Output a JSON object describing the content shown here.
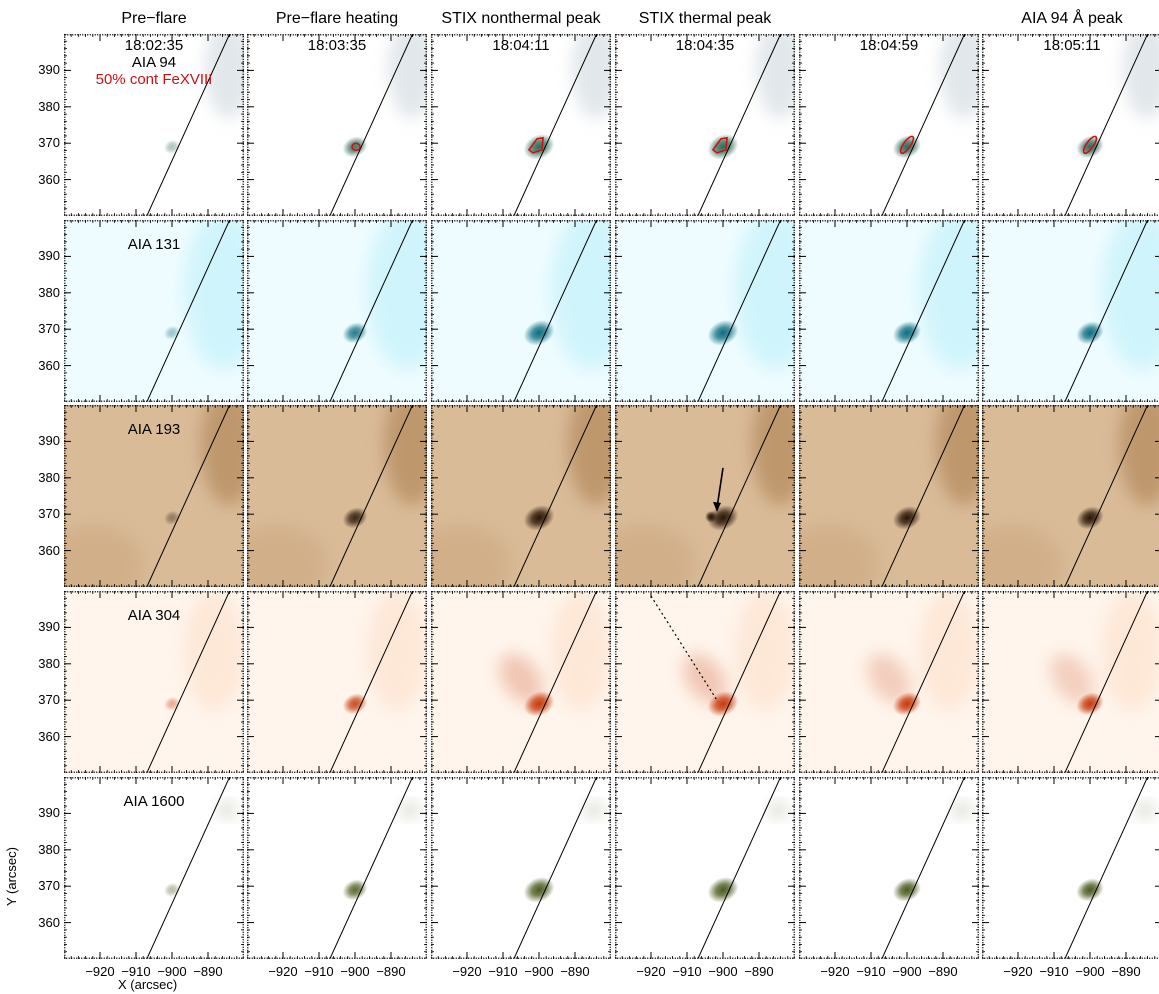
{
  "columns": [
    {
      "header": "Pre−flare",
      "time": "18:02:35"
    },
    {
      "header": "Pre−flare heating",
      "time": "18:03:35"
    },
    {
      "header": "STIX nonthermal peak",
      "time": "18:04:11"
    },
    {
      "header": "STIX thermal peak",
      "time": "18:04:35"
    },
    {
      "header": "",
      "time": "18:04:59"
    },
    {
      "header": "AIA 94 Å peak",
      "time": "18:05:11"
    }
  ],
  "rows": [
    {
      "label": "AIA 94",
      "color": "#2e6a58",
      "background": "#ffffff"
    },
    {
      "label": "AIA 131",
      "color": "#0c6d80",
      "background": "#eefcff"
    },
    {
      "label": "AIA 193",
      "color": "#2a1506",
      "background": "#d9bb98"
    },
    {
      "label": "AIA 304",
      "color": "#c63a0a",
      "background": "#fff5ec"
    },
    {
      "label": "AIA 1600",
      "color": "#4a5a1e",
      "background": "#ffffff"
    }
  ],
  "contour_label": "50% cont FeXVIII",
  "contour_color": "#cc1111",
  "axes": {
    "x_title": "X (arcsec)",
    "y_title": "Y (arcsec)",
    "x_ticks": [
      "−920",
      "−910",
      "−900",
      "−890"
    ],
    "y_ticks": [
      "390",
      "380",
      "370",
      "360"
    ],
    "x_tick_values": [
      -920,
      -910,
      -900,
      -890
    ],
    "y_tick_values": [
      390,
      380,
      370,
      360
    ],
    "xlim": [
      -930,
      -880
    ],
    "ylim": [
      350,
      400
    ]
  },
  "limb": {
    "x_at_ymin": -907,
    "x_at_ymax": -884
  },
  "source_center": [
    -900,
    369
  ]
}
